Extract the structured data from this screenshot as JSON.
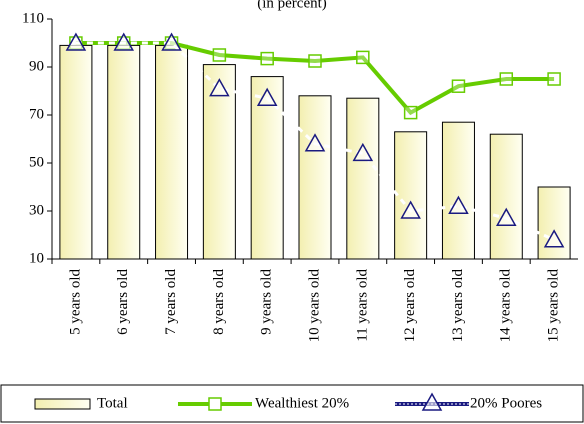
{
  "chart_data": {
    "type": "bar",
    "subtitle": "(in percent)",
    "categories": [
      "5 years old",
      "6 years old",
      "7 years old",
      "8 years old",
      "9 years old",
      "10 years old",
      "11 years old",
      "12 years old",
      "13 years old",
      "14 years old",
      "15 years old"
    ],
    "series": [
      {
        "name": "Total",
        "type": "bar",
        "color": "#f7f5c6",
        "values": [
          99,
          99,
          99,
          91,
          86,
          78,
          77,
          63,
          67,
          62,
          40
        ]
      },
      {
        "name": "Wealthiest 20%",
        "type": "line",
        "color": "#66cc00",
        "values": [
          100,
          100,
          100,
          95,
          93.5,
          92.5,
          94,
          71,
          82,
          85,
          85
        ]
      },
      {
        "name": "20% Poores",
        "type": "line",
        "color": "#1a1a80",
        "values": [
          100,
          100,
          100,
          81,
          77,
          58,
          54,
          30,
          32,
          27,
          18
        ]
      }
    ],
    "ylim": [
      10,
      110
    ],
    "yticks": [
      10,
      30,
      50,
      70,
      90,
      110
    ],
    "grid": false,
    "legend": "bottom"
  }
}
